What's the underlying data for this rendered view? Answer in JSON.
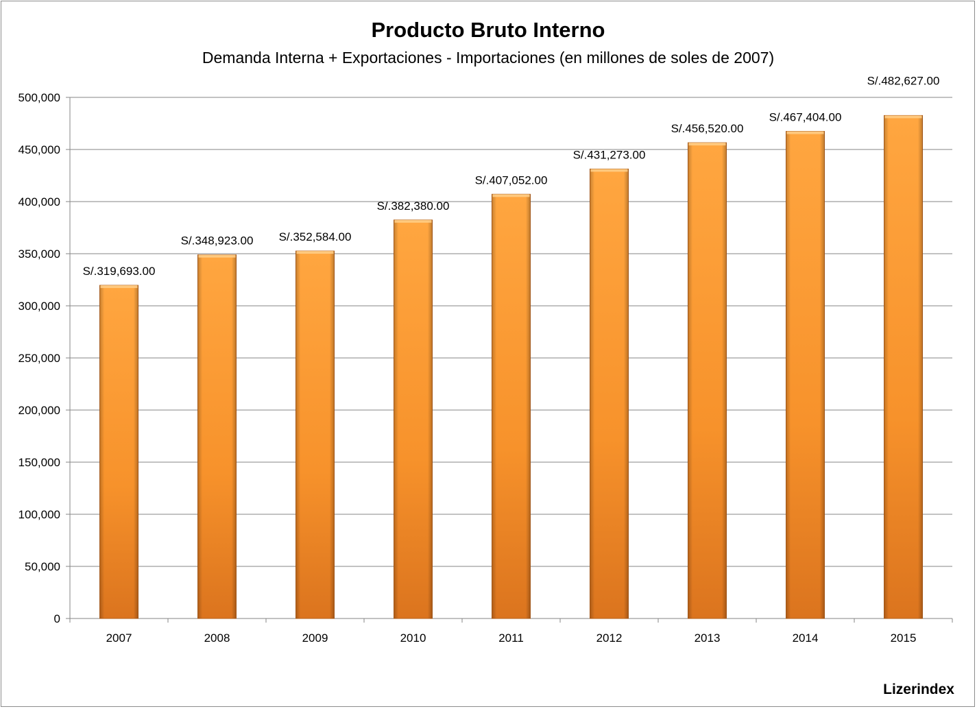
{
  "chart_data": {
    "type": "bar",
    "title": "Producto Bruto Interno",
    "subtitle": "Demanda Interna + Exportaciones - Importaciones (en  millones de soles  de 2007)",
    "categories": [
      "2007",
      "2008",
      "2009",
      "2010",
      "2011",
      "2012",
      "2013",
      "2014",
      "2015"
    ],
    "values": [
      319693,
      348923,
      352584,
      382380,
      407052,
      431273,
      456520,
      467404,
      482627
    ],
    "data_labels": [
      "S/.319,693.00",
      "S/.348,923.00",
      "S/.352,584.00",
      "S/.382,380.00",
      "S/.407,052.00",
      "S/.431,273.00",
      "S/.456,520.00",
      "S/.467,404.00",
      "S/.482,627.00"
    ],
    "y_ticks": [
      0,
      50000,
      100000,
      150000,
      200000,
      250000,
      300000,
      350000,
      400000,
      450000,
      500000
    ],
    "y_tick_labels": [
      "0",
      "50,000",
      "100,000",
      "150,000",
      "200,000",
      "250,000",
      "300,000",
      "350,000",
      "400,000",
      "450,000",
      "500,000"
    ],
    "ylim": [
      0,
      500000
    ],
    "xlabel": "",
    "ylabel": "",
    "grid": true,
    "legend": "none",
    "colors": {
      "bar_light": "#ffa43a",
      "bar_mid": "#f7922b",
      "bar_dark": "#d46e1a",
      "bar_edge": "#b5601a",
      "bar_top": "#ffcf8a",
      "grid": "#868686",
      "axis": "#868686"
    }
  },
  "watermark": "Lizerindex"
}
